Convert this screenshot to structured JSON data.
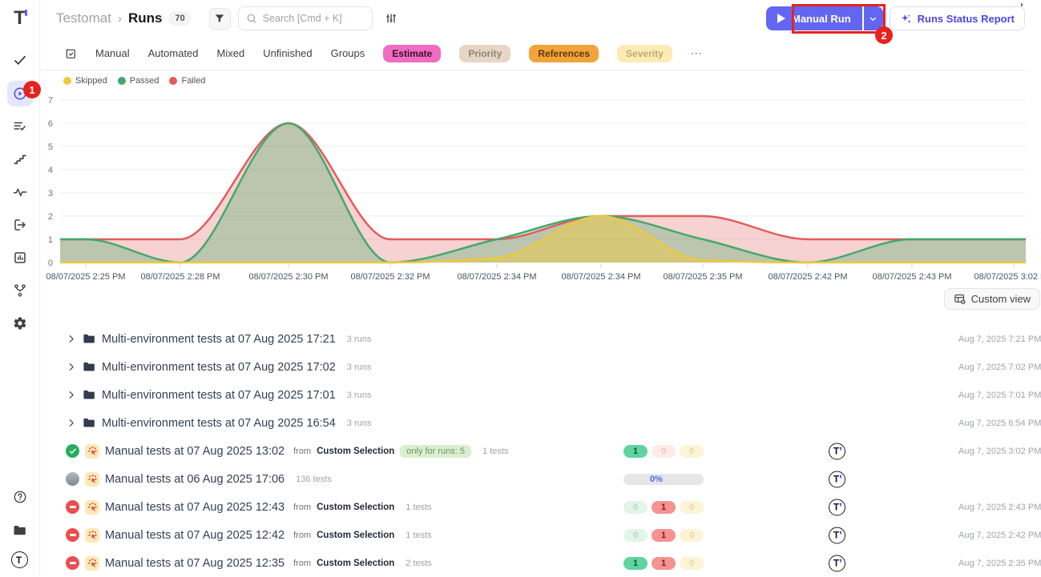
{
  "colors": {
    "accent": "#6366f1",
    "annotation": "#e8221d",
    "passed": "#43a96b",
    "failed": "#e25c5c",
    "skipped": "#eec93f"
  },
  "sidebar": {
    "logo": "T",
    "items": [
      {
        "icon": "check-icon",
        "active": false
      },
      {
        "icon": "play-circle-icon",
        "active": true,
        "badge": "1"
      },
      {
        "icon": "list-check-icon",
        "active": false
      },
      {
        "icon": "stairs-icon",
        "active": false
      },
      {
        "icon": "activity-icon",
        "active": false
      },
      {
        "icon": "box-arrow-icon",
        "active": false
      },
      {
        "icon": "bar-chart-icon",
        "active": false
      },
      {
        "icon": "branch-icon",
        "active": false
      },
      {
        "icon": "gear-icon",
        "active": false
      }
    ],
    "bottom_items": [
      {
        "icon": "help-icon"
      },
      {
        "icon": "folder-icon"
      },
      {
        "icon": "tlogo-icon"
      }
    ]
  },
  "header": {
    "breadcrumb": [
      "Testomat",
      "Runs"
    ],
    "breadcrumb_sep": "›",
    "runs_count": "70",
    "search_placeholder": "Search [Cmd + K]",
    "manual_run_label": "Manual Run",
    "report_label": "Runs Status Report"
  },
  "tabs": {
    "items": [
      {
        "label": "Manual",
        "type": "text"
      },
      {
        "label": "Automated",
        "type": "text"
      },
      {
        "label": "Mixed",
        "type": "text"
      },
      {
        "label": "Unfinished",
        "type": "text"
      },
      {
        "label": "Groups",
        "type": "text"
      },
      {
        "label": "Estimate",
        "type": "chip",
        "bg": "#ef6cc1",
        "fg": "#3d1030"
      },
      {
        "label": "Priority",
        "type": "chip",
        "bg": "#e7d6c3",
        "fg": "#8c8477"
      },
      {
        "label": "References",
        "type": "chip",
        "bg": "#f2a33a",
        "fg": "#5c3a0e"
      },
      {
        "label": "Severity",
        "type": "chip",
        "bg": "#fcecb4",
        "fg": "#c0a96e"
      },
      {
        "label": "⋯",
        "type": "more"
      }
    ]
  },
  "legend": [
    {
      "label": "Skipped",
      "color": "#eec93f"
    },
    {
      "label": "Passed",
      "color": "#43a96b"
    },
    {
      "label": "Failed",
      "color": "#e25c5c"
    }
  ],
  "chart_data": {
    "type": "area",
    "title": "",
    "xlabel": "",
    "ylabel": "",
    "ylim": [
      0,
      7
    ],
    "grid": true,
    "legend_position": "top-left",
    "x_tick_labels": [
      "08/07/2025 2:25 PM",
      "08/07/2025 2:28 PM",
      "08/07/2025 2:30 PM",
      "08/07/2025 2:32 PM",
      "08/07/2025 2:34 PM",
      "08/07/2025 2:34 PM",
      "08/07/2025 2:35 PM",
      "08/07/2025 2:42 PM",
      "08/07/2025 2:43 PM",
      "08/07/2025 3:02 PM"
    ],
    "series": [
      {
        "name": "Failed",
        "color": "#e25c5c",
        "fill": "rgba(226,92,92,0.28)",
        "values": [
          1,
          1,
          6,
          1,
          1,
          2,
          2,
          1,
          1,
          1
        ]
      },
      {
        "name": "Passed",
        "color": "#43a96b",
        "fill": "rgba(67,169,107,0.33)",
        "values": [
          1,
          0,
          6,
          0,
          1,
          2,
          1,
          0,
          1,
          1
        ]
      },
      {
        "name": "Skipped",
        "color": "#eec93f",
        "fill": "rgba(238,201,63,0.5)",
        "values": [
          0,
          0,
          0,
          0,
          0.2,
          2,
          0.1,
          0,
          0,
          0
        ]
      }
    ]
  },
  "custom_view_label": "Custom view",
  "list": {
    "folders": [
      {
        "title": "Multi-environment tests at 07 Aug 2025 17:21",
        "runs_label": "3 runs",
        "timestamp": "Aug 7, 2025 7:21 PM"
      },
      {
        "title": "Multi-environment tests at 07 Aug 2025 17:02",
        "runs_label": "3 runs",
        "timestamp": "Aug 7, 2025 7:02 PM"
      },
      {
        "title": "Multi-environment tests at 07 Aug 2025 17:01",
        "runs_label": "3 runs",
        "timestamp": "Aug 7, 2025 7:01 PM"
      },
      {
        "title": "Multi-environment tests at 07 Aug 2025 16:54",
        "runs_label": "3 runs",
        "timestamp": "Aug 7, 2025 6:54 PM"
      }
    ],
    "runs": [
      {
        "status": "passed",
        "title": "Manual tests at 07 Aug 2025 13:02",
        "from": "from",
        "source": "Custom Selection",
        "badge": "only for runs: 5",
        "tests_label": "1 tests",
        "result": {
          "type": "pills",
          "passed": 1,
          "failed": 0,
          "skipped": 0
        },
        "timestamp": "Aug 7, 2025 3:02 PM"
      },
      {
        "status": "pending",
        "title": "Manual tests at 06 Aug 2025 17:06",
        "tests_label": "136 tests",
        "result": {
          "type": "progress",
          "label": "0%"
        },
        "timestamp": ""
      },
      {
        "status": "blocked",
        "title": "Manual tests at 07 Aug 2025 12:43",
        "from": "from",
        "source": "Custom Selection",
        "tests_label": "1 tests",
        "result": {
          "type": "pills",
          "passed": 0,
          "failed": 1,
          "skipped": 0
        },
        "timestamp": "Aug 7, 2025 2:43 PM"
      },
      {
        "status": "blocked",
        "title": "Manual tests at 07 Aug 2025 12:42",
        "from": "from",
        "source": "Custom Selection",
        "tests_label": "1 tests",
        "result": {
          "type": "pills",
          "passed": 0,
          "failed": 1,
          "skipped": 0
        },
        "timestamp": "Aug 7, 2025 2:42 PM"
      },
      {
        "status": "blocked",
        "title": "Manual tests at 07 Aug 2025 12:35",
        "from": "from",
        "source": "Custom Selection",
        "tests_label": "2 tests",
        "result": {
          "type": "pills",
          "passed": 1,
          "failed": 1,
          "skipped": 0
        },
        "timestamp": "Aug 7, 2025 2:35 PM"
      }
    ]
  },
  "annotations": {
    "step1": "1",
    "step2": "2"
  }
}
